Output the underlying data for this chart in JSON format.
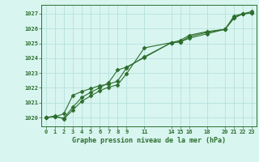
{
  "title": "Graphe pression niveau de la mer (hPa)",
  "bg_color": "#d8f5f0",
  "grid_color": "#b0ddd8",
  "line_color": "#2d6e2d",
  "marker": "D",
  "markersize": 2.5,
  "linewidth": 0.8,
  "xlim": [
    -0.5,
    23.5
  ],
  "ylim": [
    1019.4,
    1027.6
  ],
  "xticks": [
    0,
    1,
    2,
    3,
    4,
    5,
    6,
    7,
    8,
    9,
    11,
    14,
    15,
    16,
    18,
    20,
    21,
    22,
    23
  ],
  "yticks": [
    1020,
    1021,
    1022,
    1023,
    1024,
    1025,
    1026,
    1027
  ],
  "series": [
    {
      "x": [
        0,
        1,
        2,
        3,
        4,
        5,
        6,
        7,
        8,
        9,
        11,
        14,
        15,
        16,
        18,
        20,
        21,
        22,
        23
      ],
      "y": [
        1020.0,
        1020.1,
        1019.9,
        1020.5,
        1021.1,
        1021.45,
        1021.8,
        1022.05,
        1022.2,
        1022.95,
        1024.7,
        1025.05,
        1025.1,
        1025.35,
        1025.65,
        1025.95,
        1026.85,
        1027.0,
        1027.05
      ]
    },
    {
      "x": [
        0,
        1,
        2,
        3,
        4,
        5,
        6,
        7,
        8,
        9,
        11,
        14,
        15,
        16,
        18,
        20,
        21,
        22,
        23
      ],
      "y": [
        1020.0,
        1020.05,
        1019.95,
        1020.7,
        1021.35,
        1021.7,
        1022.0,
        1022.35,
        1023.2,
        1023.4,
        1024.05,
        1025.05,
        1025.1,
        1025.45,
        1025.75,
        1025.95,
        1026.75,
        1027.0,
        1027.05
      ]
    },
    {
      "x": [
        0,
        1,
        2,
        3,
        4,
        5,
        6,
        7,
        8,
        9,
        11,
        14,
        15,
        16,
        18,
        20,
        21,
        22,
        23
      ],
      "y": [
        1020.0,
        1020.05,
        1020.25,
        1021.5,
        1021.75,
        1021.95,
        1022.15,
        1022.25,
        1022.45,
        1023.35,
        1024.1,
        1025.05,
        1025.2,
        1025.55,
        1025.8,
        1025.95,
        1026.7,
        1027.0,
        1027.15
      ]
    }
  ]
}
